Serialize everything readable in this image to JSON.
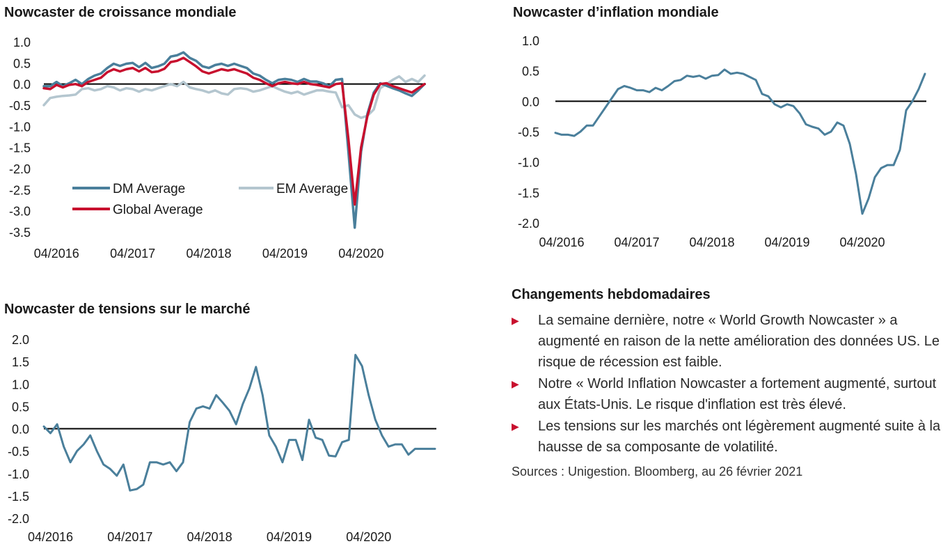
{
  "chart_data": [
    {
      "id": "growth",
      "type": "line",
      "title": "Nowcaster de croissance mondiale",
      "xlabel": "",
      "ylabel": "",
      "ylim": [
        -3.5,
        1.0
      ],
      "yticks": [
        "1.0",
        "0.5",
        "0.0",
        "-0.5",
        "-1.0",
        "-1.5",
        "-2.0",
        "-2.5",
        "-3.0",
        "-3.5"
      ],
      "xticks": [
        "04/2016",
        "04/2017",
        "04/2018",
        "04/2019",
        "04/2020"
      ],
      "xlim": [
        "2016-02",
        "2021-02"
      ],
      "x": [
        "2016-02",
        "2016-03",
        "2016-04",
        "2016-05",
        "2016-06",
        "2016-07",
        "2016-08",
        "2016-09",
        "2016-10",
        "2016-11",
        "2016-12",
        "2017-01",
        "2017-02",
        "2017-03",
        "2017-04",
        "2017-05",
        "2017-06",
        "2017-07",
        "2017-08",
        "2017-09",
        "2017-10",
        "2017-11",
        "2017-12",
        "2018-01",
        "2018-02",
        "2018-03",
        "2018-04",
        "2018-05",
        "2018-06",
        "2018-07",
        "2018-08",
        "2018-09",
        "2018-10",
        "2018-11",
        "2018-12",
        "2019-01",
        "2019-02",
        "2019-03",
        "2019-04",
        "2019-05",
        "2019-06",
        "2019-07",
        "2019-08",
        "2019-09",
        "2019-10",
        "2019-11",
        "2019-12",
        "2020-01",
        "2020-02",
        "2020-03",
        "2020-04",
        "2020-05",
        "2020-06",
        "2020-07",
        "2020-08",
        "2020-09",
        "2020-10",
        "2020-11",
        "2020-12",
        "2021-01",
        "2021-02"
      ],
      "series": [
        {
          "name": "DM Average",
          "color": "#4a7f9b",
          "values": [
            -0.05,
            -0.05,
            0.05,
            -0.05,
            0.02,
            0.1,
            0.0,
            0.12,
            0.2,
            0.25,
            0.38,
            0.48,
            0.43,
            0.48,
            0.5,
            0.4,
            0.5,
            0.38,
            0.42,
            0.48,
            0.65,
            0.68,
            0.75,
            0.62,
            0.55,
            0.42,
            0.38,
            0.45,
            0.48,
            0.43,
            0.48,
            0.43,
            0.38,
            0.25,
            0.2,
            0.1,
            0.02,
            0.1,
            0.12,
            0.1,
            0.05,
            0.12,
            0.06,
            0.06,
            0.02,
            -0.05,
            0.1,
            0.12,
            -1.6,
            -3.4,
            -1.6,
            -0.7,
            -0.2,
            0.02,
            -0.04,
            -0.1,
            -0.15,
            -0.22,
            -0.28,
            -0.15,
            0.0
          ]
        },
        {
          "name": "EM Average",
          "color": "#b4c6cf",
          "values": [
            -0.5,
            -0.33,
            -0.3,
            -0.28,
            -0.27,
            -0.25,
            -0.12,
            -0.1,
            -0.15,
            -0.12,
            -0.05,
            -0.08,
            -0.15,
            -0.1,
            -0.12,
            -0.18,
            -0.12,
            -0.15,
            -0.1,
            -0.05,
            0.0,
            -0.05,
            0.05,
            -0.08,
            -0.12,
            -0.15,
            -0.2,
            -0.15,
            -0.22,
            -0.25,
            -0.12,
            -0.1,
            -0.12,
            -0.18,
            -0.15,
            -0.1,
            -0.05,
            -0.12,
            -0.18,
            -0.22,
            -0.18,
            -0.25,
            -0.2,
            -0.15,
            -0.15,
            -0.18,
            -0.2,
            -0.55,
            -0.5,
            -0.72,
            -0.8,
            -0.75,
            -0.6,
            -0.1,
            0.0,
            0.1,
            0.18,
            0.05,
            0.12,
            0.05,
            0.2
          ]
        },
        {
          "name": "Global Average",
          "color": "#c8102e",
          "values": [
            -0.1,
            -0.12,
            -0.02,
            -0.08,
            -0.02,
            0.0,
            -0.05,
            0.05,
            0.1,
            0.15,
            0.28,
            0.35,
            0.3,
            0.35,
            0.38,
            0.3,
            0.38,
            0.28,
            0.3,
            0.36,
            0.52,
            0.55,
            0.62,
            0.52,
            0.42,
            0.3,
            0.25,
            0.3,
            0.35,
            0.32,
            0.35,
            0.3,
            0.25,
            0.15,
            0.1,
            0.02,
            -0.05,
            0.02,
            0.05,
            0.02,
            0.0,
            0.05,
            0.0,
            -0.02,
            -0.05,
            -0.08,
            0.0,
            0.02,
            -1.3,
            -2.85,
            -1.5,
            -0.75,
            -0.25,
            0.0,
            0.02,
            -0.05,
            -0.1,
            -0.15,
            -0.2,
            -0.1,
            0.0
          ]
        }
      ],
      "legend": "bottom-left"
    },
    {
      "id": "inflation",
      "type": "line",
      "title": "Nowcaster d’inflation mondiale",
      "xlabel": "",
      "ylabel": "",
      "ylim": [
        -2.0,
        1.0
      ],
      "yticks": [
        "1.0",
        "0.5",
        "0.0",
        "-0.5",
        "-1.0",
        "-1.5",
        "-2.0"
      ],
      "xticks": [
        "04/2016",
        "04/2017",
        "04/2018",
        "04/2019",
        "04/2020"
      ],
      "xlim": [
        "2016-03",
        "2021-02"
      ],
      "x": [
        "2016-03",
        "2016-04",
        "2016-05",
        "2016-06",
        "2016-07",
        "2016-08",
        "2016-09",
        "2016-10",
        "2016-11",
        "2016-12",
        "2017-01",
        "2017-02",
        "2017-03",
        "2017-04",
        "2017-05",
        "2017-06",
        "2017-07",
        "2017-08",
        "2017-09",
        "2017-10",
        "2017-11",
        "2017-12",
        "2018-01",
        "2018-02",
        "2018-03",
        "2018-04",
        "2018-05",
        "2018-06",
        "2018-07",
        "2018-08",
        "2018-09",
        "2018-10",
        "2018-11",
        "2018-12",
        "2019-01",
        "2019-02",
        "2019-03",
        "2019-04",
        "2019-05",
        "2019-06",
        "2019-07",
        "2019-08",
        "2019-09",
        "2019-10",
        "2019-11",
        "2019-12",
        "2020-01",
        "2020-02",
        "2020-03",
        "2020-04",
        "2020-05",
        "2020-06",
        "2020-07",
        "2020-08",
        "2020-09",
        "2020-10",
        "2020-11",
        "2020-12",
        "2021-01",
        "2021-02"
      ],
      "series": [
        {
          "name": "",
          "color": "#4a7f9b",
          "values": [
            -0.52,
            -0.55,
            -0.55,
            -0.57,
            -0.5,
            -0.4,
            -0.4,
            -0.25,
            -0.1,
            0.05,
            0.2,
            0.25,
            0.22,
            0.18,
            0.18,
            0.15,
            0.22,
            0.18,
            0.25,
            0.33,
            0.35,
            0.42,
            0.4,
            0.42,
            0.37,
            0.42,
            0.43,
            0.52,
            0.45,
            0.47,
            0.45,
            0.4,
            0.35,
            0.12,
            0.08,
            -0.05,
            -0.1,
            -0.05,
            -0.08,
            -0.2,
            -0.38,
            -0.42,
            -0.45,
            -0.55,
            -0.5,
            -0.35,
            -0.4,
            -0.7,
            -1.2,
            -1.85,
            -1.6,
            -1.25,
            -1.1,
            -1.05,
            -1.05,
            -0.8,
            -0.15,
            0.0,
            0.2,
            0.45
          ]
        }
      ]
    },
    {
      "id": "stress",
      "type": "line",
      "title": "Nowcaster de tensions sur le marché",
      "xlabel": "",
      "ylabel": "",
      "ylim": [
        -2.0,
        2.0
      ],
      "yticks": [
        "2.0",
        "1.5",
        "1.0",
        "0.5",
        "0.0",
        "-0.5",
        "-1.0",
        "-1.5",
        "-2.0"
      ],
      "xticks": [
        "04/2016",
        "04/2017",
        "04/2018",
        "04/2019",
        "04/2020"
      ],
      "xlim": [
        "2016-03",
        "2021-02"
      ],
      "x": [
        "2016-03",
        "2016-04",
        "2016-05",
        "2016-06",
        "2016-07",
        "2016-08",
        "2016-09",
        "2016-10",
        "2016-11",
        "2016-12",
        "2017-01",
        "2017-02",
        "2017-03",
        "2017-04",
        "2017-05",
        "2017-06",
        "2017-07",
        "2017-08",
        "2017-09",
        "2017-10",
        "2017-11",
        "2017-12",
        "2018-01",
        "2018-02",
        "2018-03",
        "2018-04",
        "2018-05",
        "2018-06",
        "2018-07",
        "2018-08",
        "2018-09",
        "2018-10",
        "2018-11",
        "2018-12",
        "2019-01",
        "2019-02",
        "2019-03",
        "2019-04",
        "2019-05",
        "2019-06",
        "2019-07",
        "2019-08",
        "2019-09",
        "2019-10",
        "2019-11",
        "2019-12",
        "2020-01",
        "2020-02",
        "2020-03",
        "2020-04",
        "2020-05",
        "2020-06",
        "2020-07",
        "2020-08",
        "2020-09",
        "2020-10",
        "2020-11",
        "2020-12",
        "2021-01",
        "2021-02"
      ],
      "series": [
        {
          "name": "",
          "color": "#4a7f9b",
          "values": [
            0.05,
            -0.1,
            0.1,
            -0.4,
            -0.75,
            -0.5,
            -0.35,
            -0.15,
            -0.5,
            -0.8,
            -0.9,
            -1.05,
            -0.8,
            -1.38,
            -1.35,
            -1.25,
            -0.75,
            -0.75,
            -0.8,
            -0.75,
            -0.95,
            -0.75,
            0.15,
            0.45,
            0.5,
            0.45,
            0.75,
            0.58,
            0.4,
            0.1,
            0.55,
            0.9,
            1.38,
            0.75,
            -0.15,
            -0.4,
            -0.75,
            -0.25,
            -0.25,
            -0.7,
            0.2,
            -0.2,
            -0.25,
            -0.6,
            -0.62,
            -0.3,
            -0.25,
            1.65,
            1.4,
            0.75,
            0.2,
            -0.15,
            -0.4,
            -0.35,
            -0.35,
            -0.58,
            -0.45,
            -0.45,
            -0.45,
            -0.45
          ]
        }
      ]
    }
  ],
  "notes": {
    "title": "Changements hebdomadaires",
    "bullet_glyph": "▶",
    "items": [
      "La semaine dernière, notre « World Growth Nowcaster » a augmenté en raison de la nette amélioration des données US. Le risque de récession est faible.",
      "Notre « World Inflation Nowcaster a fortement augmenté, surtout aux États-Unis. Le risque d'inflation est très élevé.",
      "Les tensions sur les marchés ont légèrement augmenté suite à la hausse de sa composante de volatilité."
    ],
    "source": "Sources : Unigestion. Bloomberg, au 26 février 2021"
  }
}
